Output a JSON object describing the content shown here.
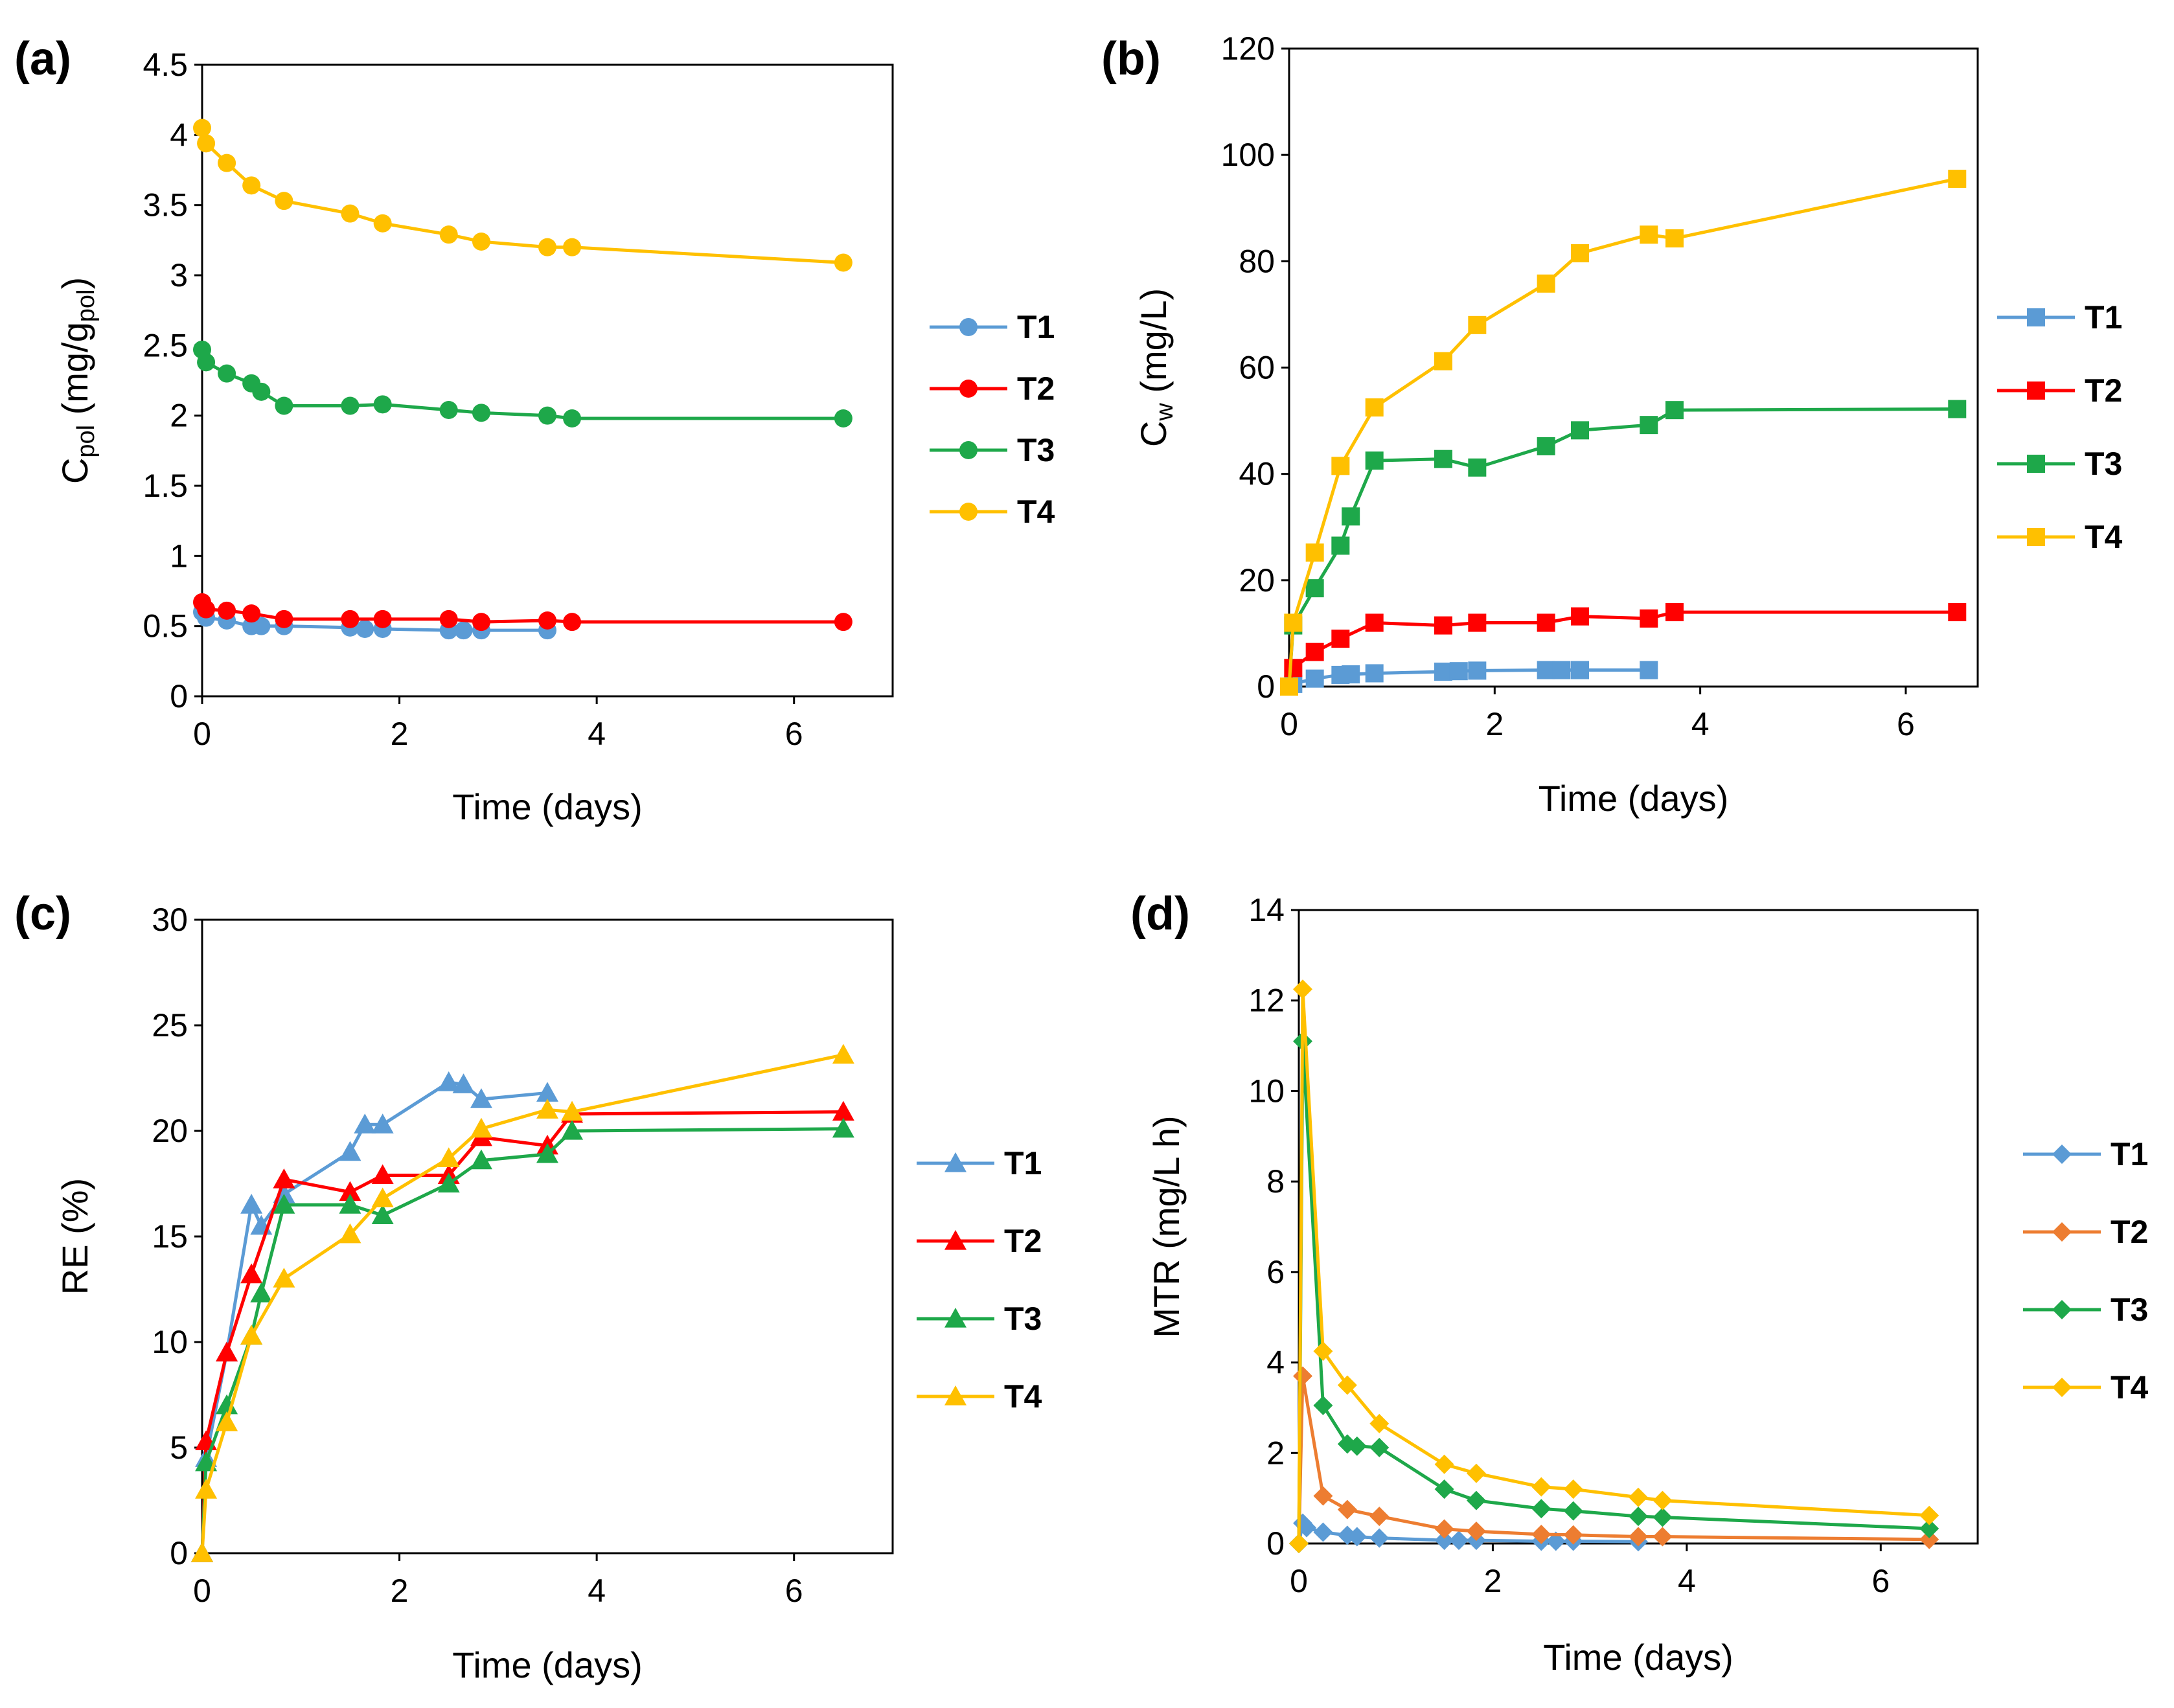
{
  "colors": {
    "T1": "#5B9BD5",
    "T2": "#FF0000",
    "T2_d": "#ED7D31",
    "T3": "#1EA84A",
    "T4": "#FFC000"
  },
  "chart_data": [
    {
      "type": "line",
      "panel_label": "(a)",
      "marker": "circle",
      "xlabel": "Time (days)",
      "ylabel_main": "C",
      "ylabel_sub": "pol",
      "ylabel_rest": " (mg/g",
      "ylabel_sub2": "pol",
      "ylabel_end": ")",
      "xlim": [
        0,
        7
      ],
      "ylim": [
        0,
        4.5
      ],
      "xticks": [
        "0",
        "2",
        "4",
        "6"
      ],
      "xtick_values": [
        0,
        2,
        4,
        6
      ],
      "yticks": [
        "0",
        "0.5",
        "1",
        "1.5",
        "2",
        "2.5",
        "3",
        "3.5",
        "4",
        "4.5"
      ],
      "ytick_values": [
        0,
        0.5,
        1,
        1.5,
        2,
        2.5,
        3,
        3.5,
        4,
        4.5
      ],
      "series": [
        {
          "name": "T1",
          "x": [
            0,
            0.04,
            0.25,
            0.5,
            0.6,
            0.83,
            1.5,
            1.65,
            1.83,
            2.5,
            2.65,
            2.83,
            3.5
          ],
          "y": [
            0.6,
            0.56,
            0.54,
            0.5,
            0.5,
            0.5,
            0.49,
            0.48,
            0.48,
            0.47,
            0.47,
            0.47,
            0.47
          ]
        },
        {
          "name": "T2",
          "x": [
            0,
            0.04,
            0.25,
            0.5,
            0.83,
            1.5,
            1.83,
            2.5,
            2.83,
            3.5,
            3.75,
            6.5
          ],
          "y": [
            0.67,
            0.62,
            0.61,
            0.59,
            0.55,
            0.55,
            0.55,
            0.55,
            0.53,
            0.54,
            0.53,
            0.53
          ]
        },
        {
          "name": "T3",
          "x": [
            0,
            0.04,
            0.25,
            0.5,
            0.6,
            0.83,
            1.5,
            1.83,
            2.5,
            2.83,
            3.5,
            3.75,
            6.5
          ],
          "y": [
            2.47,
            2.38,
            2.3,
            2.23,
            2.17,
            2.07,
            2.07,
            2.08,
            2.04,
            2.02,
            2.0,
            1.98,
            1.98
          ]
        },
        {
          "name": "T4",
          "x": [
            0,
            0.04,
            0.25,
            0.5,
            0.83,
            1.5,
            1.83,
            2.5,
            2.83,
            3.5,
            3.75,
            6.5
          ],
          "y": [
            4.05,
            3.94,
            3.8,
            3.64,
            3.53,
            3.44,
            3.37,
            3.29,
            3.24,
            3.2,
            3.2,
            3.09
          ]
        }
      ]
    },
    {
      "type": "line",
      "panel_label": "(b)",
      "marker": "square",
      "xlabel": "Time (days)",
      "ylabel_main": "C",
      "ylabel_sub": "w",
      "ylabel_rest": " (mg/L)",
      "ylabel_sub2": "",
      "ylabel_end": "",
      "xlim": [
        0,
        6.7
      ],
      "ylim": [
        0,
        120
      ],
      "xticks": [
        "0",
        "2",
        "4",
        "6"
      ],
      "xtick_values": [
        0,
        2,
        4,
        6
      ],
      "yticks": [
        "0",
        "20",
        "40",
        "60",
        "80",
        "100",
        "120"
      ],
      "ytick_values": [
        0,
        20,
        40,
        60,
        80,
        100,
        120
      ],
      "series": [
        {
          "name": "T1",
          "x": [
            0,
            0.04,
            0.25,
            0.5,
            0.6,
            0.83,
            1.5,
            1.65,
            1.83,
            2.5,
            2.65,
            2.83,
            3.5
          ],
          "y": [
            0,
            0.5,
            1.5,
            2.2,
            2.3,
            2.5,
            2.8,
            2.9,
            3.0,
            3.1,
            3.1,
            3.1,
            3.1
          ]
        },
        {
          "name": "T2",
          "x": [
            0,
            0.04,
            0.25,
            0.5,
            0.83,
            1.5,
            1.83,
            2.5,
            2.83,
            3.5,
            3.75,
            6.5
          ],
          "y": [
            0,
            3.5,
            6.5,
            9.0,
            12.0,
            11.5,
            12.0,
            12.0,
            13.2,
            12.8,
            14.0,
            14.0
          ]
        },
        {
          "name": "T3",
          "x": [
            0,
            0.04,
            0.25,
            0.5,
            0.6,
            0.83,
            1.5,
            1.83,
            2.5,
            2.83,
            3.5,
            3.75,
            6.5
          ],
          "y": [
            0,
            11.5,
            18.5,
            26.5,
            32.0,
            42.5,
            42.8,
            41.2,
            45.2,
            48.2,
            49.2,
            52.0,
            52.2
          ]
        },
        {
          "name": "T4",
          "x": [
            0,
            0.04,
            0.25,
            0.5,
            0.83,
            1.5,
            1.83,
            2.5,
            2.83,
            3.5,
            3.75,
            6.5
          ],
          "y": [
            0,
            12.0,
            25.2,
            41.5,
            52.5,
            61.2,
            68.0,
            75.8,
            81.5,
            85.0,
            84.3,
            95.5
          ]
        }
      ]
    },
    {
      "type": "line",
      "panel_label": "(c)",
      "marker": "triangle",
      "xlabel": "Time (days)",
      "ylabel_main": "RE (%)",
      "ylabel_sub": "",
      "ylabel_rest": "",
      "ylabel_sub2": "",
      "ylabel_end": "",
      "xlim": [
        0,
        7
      ],
      "ylim": [
        0,
        30
      ],
      "xticks": [
        "0",
        "2",
        "4",
        "6"
      ],
      "xtick_values": [
        0,
        2,
        4,
        6
      ],
      "yticks": [
        "0",
        "5",
        "10",
        "15",
        "20",
        "25",
        "30"
      ],
      "ytick_values": [
        0,
        5,
        10,
        15,
        20,
        25,
        30
      ],
      "series": [
        {
          "name": "T1",
          "x": [
            0,
            0.04,
            0.25,
            0.5,
            0.6,
            0.83,
            1.5,
            1.65,
            1.83,
            2.5,
            2.65,
            2.83,
            3.5
          ],
          "y": [
            0,
            4.5,
            9.5,
            16.5,
            15.5,
            17.0,
            19.0,
            20.3,
            20.3,
            22.3,
            22.2,
            21.5,
            21.8
          ]
        },
        {
          "name": "T2",
          "x": [
            0,
            0.04,
            0.25,
            0.5,
            0.83,
            1.5,
            1.83,
            2.5,
            2.83,
            3.5,
            3.75,
            6.5
          ],
          "y": [
            0,
            5.3,
            9.5,
            13.2,
            17.7,
            17.1,
            17.9,
            17.9,
            19.7,
            19.3,
            20.8,
            20.9
          ]
        },
        {
          "name": "T3",
          "x": [
            0,
            0.04,
            0.25,
            0.5,
            0.6,
            0.83,
            1.5,
            1.83,
            2.5,
            2.83,
            3.5,
            3.75,
            6.5
          ],
          "y": [
            0,
            4.3,
            7.0,
            10.3,
            12.3,
            16.5,
            16.5,
            16.0,
            17.5,
            18.6,
            18.9,
            20.0,
            20.1
          ]
        },
        {
          "name": "T4",
          "x": [
            0,
            0.04,
            0.25,
            0.5,
            0.83,
            1.5,
            1.83,
            2.5,
            2.83,
            3.5,
            3.75,
            6.5
          ],
          "y": [
            0,
            3.0,
            6.2,
            10.3,
            13.0,
            15.1,
            16.8,
            18.7,
            20.1,
            21.0,
            20.9,
            23.6
          ]
        }
      ]
    },
    {
      "type": "line",
      "panel_label": "(d)",
      "marker": "diamond",
      "xlabel": "Time (days)",
      "ylabel_main": "MTR (mg/L h)",
      "ylabel_sub": "",
      "ylabel_rest": "",
      "ylabel_sub2": "",
      "ylabel_end": "",
      "xlim": [
        0,
        7
      ],
      "ylim": [
        0,
        14
      ],
      "xticks": [
        "0",
        "2",
        "4",
        "6"
      ],
      "xtick_values": [
        0,
        2,
        4,
        6
      ],
      "yticks": [
        "0",
        "2",
        "4",
        "6",
        "8",
        "10",
        "12",
        "14"
      ],
      "ytick_values": [
        0,
        2,
        4,
        6,
        8,
        10,
        12,
        14
      ],
      "series": [
        {
          "name": "T1",
          "x": [
            0,
            0.04,
            0.08,
            0.25,
            0.5,
            0.6,
            0.83,
            1.5,
            1.65,
            1.83,
            2.5,
            2.65,
            2.83,
            3.5
          ],
          "y": [
            0,
            0.45,
            0.35,
            0.25,
            0.18,
            0.15,
            0.12,
            0.07,
            0.07,
            0.07,
            0.05,
            0.05,
            0.05,
            0.04
          ]
        },
        {
          "name": "T2",
          "x": [
            0,
            0.04,
            0.25,
            0.5,
            0.83,
            1.5,
            1.83,
            2.5,
            2.83,
            3.5,
            3.75,
            6.5
          ],
          "y": [
            0,
            3.7,
            1.05,
            0.75,
            0.6,
            0.32,
            0.27,
            0.2,
            0.19,
            0.15,
            0.15,
            0.09
          ]
        },
        {
          "name": "T3",
          "x": [
            0,
            0.04,
            0.25,
            0.5,
            0.6,
            0.83,
            1.5,
            1.83,
            2.5,
            2.83,
            3.5,
            3.75,
            6.5
          ],
          "y": [
            0,
            11.1,
            3.05,
            2.2,
            2.15,
            2.12,
            1.2,
            0.95,
            0.77,
            0.72,
            0.6,
            0.58,
            0.33
          ]
        },
        {
          "name": "T4",
          "x": [
            0,
            0.04,
            0.25,
            0.5,
            0.83,
            1.5,
            1.83,
            2.5,
            2.83,
            3.5,
            3.75,
            6.5
          ],
          "y": [
            0,
            12.25,
            4.25,
            3.5,
            2.65,
            1.75,
            1.55,
            1.25,
            1.2,
            1.02,
            0.95,
            0.62
          ]
        }
      ]
    }
  ]
}
